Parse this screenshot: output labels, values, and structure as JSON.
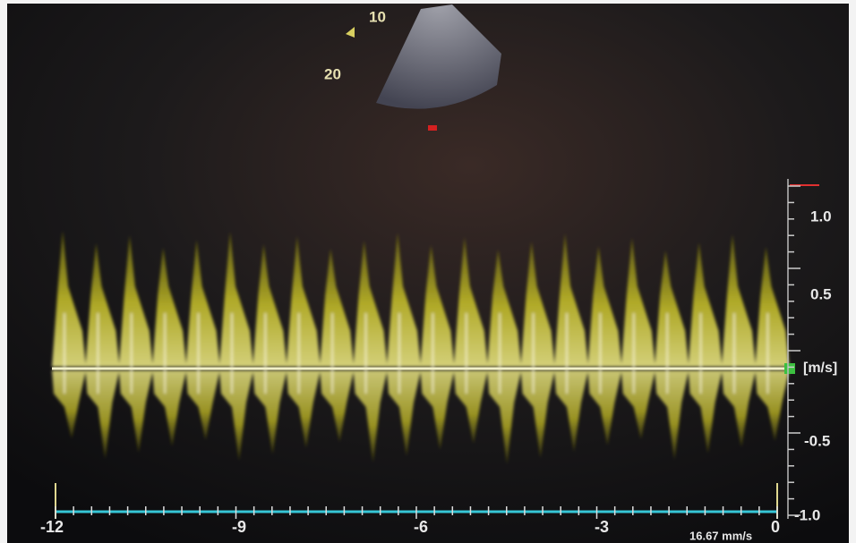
{
  "depth_scale": {
    "labels": [
      "10",
      "20"
    ]
  },
  "velocity_scale": {
    "labels": [
      "1.0",
      "0.5",
      "-0.5",
      "-1.0"
    ],
    "unit": "[m/s]"
  },
  "time_axis": {
    "labels": [
      "-12",
      "-9",
      "-6",
      "-3",
      "0"
    ]
  },
  "sweep_speed": "16.67 mm/s"
}
